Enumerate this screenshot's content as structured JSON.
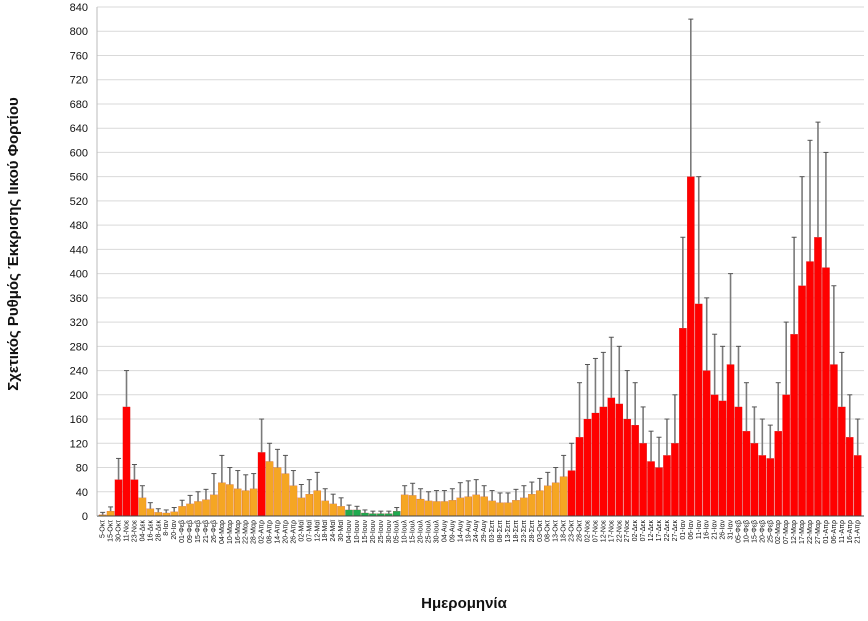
{
  "chart_data": {
    "type": "bar",
    "title": "",
    "ylabel": "Σχετικός Ρυθμός Έκκρισης Ιικού Φορτίου",
    "xlabel": "Ημερομηνία",
    "ylim": [
      0,
      840
    ],
    "y_ticks": [
      0,
      40,
      80,
      120,
      160,
      200,
      240,
      280,
      320,
      360,
      400,
      440,
      480,
      520,
      560,
      600,
      640,
      680,
      720,
      760,
      800,
      840
    ],
    "grid": true,
    "legend": "none",
    "colors": {
      "red": "#ff0000",
      "orange": "#f5a623",
      "green": "#1faa4f",
      "error_bar": "#7a7a7a"
    },
    "categories": [
      "5-Οκτ",
      "15-Οκτ",
      "30-Οκτ",
      "11-Νοε",
      "23-Νοε",
      "04-Δεκ",
      "16-Δεκ",
      "28-Δεκ",
      "8-Ιαν",
      "20-Ιαν",
      "01-Φεβ",
      "09-Φεβ",
      "15-Φεβ",
      "21-Φεβ",
      "26-Φεβ",
      "04-Μαρ",
      "10-Μαρ",
      "16-Μαρ",
      "22-Μαρ",
      "28-Μαρ",
      "02-Απρ",
      "08-Απρ",
      "14-Απρ",
      "20-Απρ",
      "26-Απρ",
      "02-Μαϊ",
      "07-Μαϊ",
      "12-Μαϊ",
      "18-Μαϊ",
      "24-Μαϊ",
      "30-Μαϊ",
      "04-Ιουν",
      "10-Ιουν",
      "15-Ιουν",
      "20-Ιουν",
      "25-Ιουν",
      "30-Ιουν",
      "05-Ιουλ",
      "10-Ιουλ",
      "15-Ιουλ",
      "20-Ιουλ",
      "25-Ιουλ",
      "30-Ιουλ",
      "04-Αυγ",
      "09-Αυγ",
      "14-Αυγ",
      "19-Αυγ",
      "24-Αυγ",
      "29-Αυγ",
      "03-Σεπ",
      "08-Σεπ",
      "13-Σεπ",
      "18-Σεπ",
      "23-Σεπ",
      "28-Σεπ",
      "03-Οκτ",
      "08-Οκτ",
      "13-Οκτ",
      "18-Οκτ",
      "23-Οκτ",
      "28-Οκτ",
      "02-Νοε",
      "07-Νοε",
      "12-Νοε",
      "17-Νοε",
      "22-Νοε",
      "27-Νοε",
      "02-Δεκ",
      "07-Δεκ",
      "12-Δεκ",
      "17-Δεκ",
      "22-Δεκ",
      "27-Δεκ",
      "01-Ιαν",
      "06-Ιαν",
      "11-Ιαν",
      "16-Ιαν",
      "21-Ιαν",
      "26-Ιαν",
      "31-Ιαν",
      "05-Φεβ",
      "10-Φεβ",
      "15-Φεβ",
      "20-Φεβ",
      "25-Φεβ",
      "02-Μαρ",
      "07-Μαρ",
      "12-Μαρ",
      "17-Μαρ",
      "22-Μαρ",
      "27-Μαρ",
      "01-Απρ",
      "06-Απρ",
      "11-Απρ",
      "16-Απρ",
      "21-Απρ"
    ],
    "values": [
      2,
      8,
      60,
      180,
      60,
      30,
      12,
      6,
      5,
      7,
      16,
      20,
      24,
      27,
      35,
      55,
      52,
      45,
      42,
      45,
      105,
      90,
      80,
      70,
      50,
      30,
      36,
      42,
      25,
      20,
      16,
      10,
      10,
      5,
      4,
      4,
      4,
      8,
      35,
      34,
      28,
      25,
      24,
      24,
      26,
      30,
      32,
      35,
      32,
      25,
      22,
      22,
      26,
      30,
      36,
      42,
      50,
      55,
      65,
      75,
      130,
      160,
      170,
      180,
      195,
      185,
      160,
      150,
      120,
      90,
      80,
      100,
      120,
      310,
      560,
      350,
      240,
      200,
      190,
      250,
      180,
      140,
      120,
      100,
      95,
      140,
      200,
      300,
      380,
      420,
      460,
      410,
      250,
      180,
      130,
      100
    ],
    "error_upper": [
      6,
      15,
      95,
      240,
      85,
      50,
      22,
      12,
      10,
      14,
      26,
      34,
      40,
      44,
      70,
      100,
      80,
      75,
      68,
      70,
      160,
      120,
      110,
      100,
      75,
      52,
      60,
      72,
      45,
      36,
      30,
      18,
      16,
      10,
      8,
      8,
      8,
      14,
      50,
      54,
      45,
      40,
      42,
      42,
      45,
      55,
      58,
      60,
      50,
      42,
      38,
      38,
      44,
      50,
      56,
      62,
      72,
      80,
      100,
      120,
      220,
      250,
      260,
      270,
      295,
      280,
      240,
      220,
      180,
      140,
      130,
      160,
      200,
      460,
      820,
      560,
      360,
      300,
      280,
      400,
      280,
      220,
      180,
      160,
      150,
      220,
      320,
      460,
      560,
      620,
      650,
      600,
      380,
      270,
      200,
      160
    ],
    "color_index": [
      1,
      1,
      0,
      0,
      0,
      1,
      1,
      1,
      1,
      1,
      1,
      1,
      1,
      1,
      1,
      1,
      1,
      1,
      1,
      1,
      0,
      1,
      1,
      1,
      1,
      1,
      1,
      1,
      1,
      1,
      1,
      2,
      2,
      2,
      2,
      2,
      2,
      2,
      1,
      1,
      1,
      1,
      1,
      1,
      1,
      1,
      1,
      1,
      1,
      1,
      1,
      1,
      1,
      1,
      1,
      1,
      1,
      1,
      1,
      0,
      0,
      0,
      0,
      0,
      0,
      0,
      0,
      0,
      0,
      0,
      0,
      0,
      0,
      0,
      0,
      0,
      0,
      0,
      0,
      0,
      0,
      0,
      0,
      0,
      0,
      0,
      0,
      0,
      0,
      0,
      0,
      0,
      0,
      0,
      0,
      0
    ]
  }
}
